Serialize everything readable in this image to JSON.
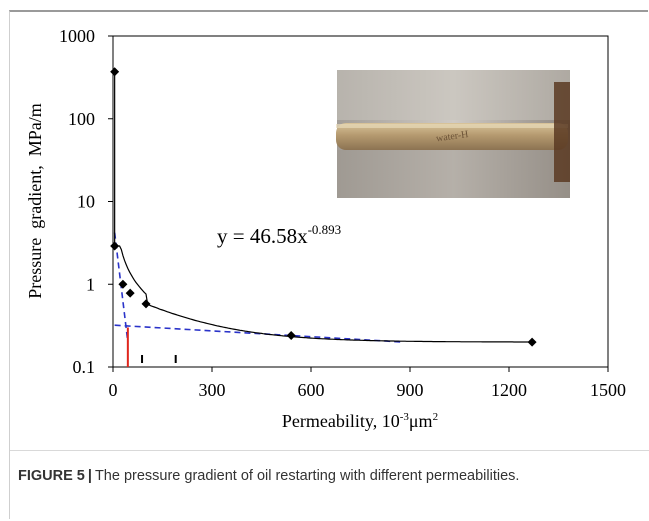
{
  "chart_data": {
    "type": "scatter",
    "xlabel": "Permeability,  10-3μm2",
    "xlabel_parts": {
      "main": "Permeability,  10",
      "exp": "-3",
      "unit": "μm",
      "unit_exp": "2"
    },
    "ylabel": "Pressure  gradient,  MPa/m",
    "xlim": [
      0,
      1500
    ],
    "ylim": [
      0.1,
      1000
    ],
    "y_scale": "log",
    "x_ticks": [
      "0",
      "300",
      "600",
      "900",
      "1200",
      "1500"
    ],
    "y_ticks": [
      "0.1",
      "1",
      "10",
      "100",
      "1000"
    ],
    "grid": false,
    "series": [
      {
        "x": [
          5,
          5,
          30,
          52,
          100,
          540,
          1270
        ],
        "y": [
          370,
          2.9,
          1.0,
          0.78,
          0.58,
          0.24,
          0.2
        ],
        "marker": "diamond",
        "color": "#000000"
      }
    ],
    "fit_curve": {
      "a": 46.58,
      "b": -0.893,
      "color": "#000000"
    },
    "asymptotes": [
      {
        "x": [
          5,
          45
        ],
        "y": [
          4.2,
          0.2
        ],
        "color": "#2a33c9",
        "style": "dashed"
      },
      {
        "x": [
          5,
          880
        ],
        "y": [
          0.32,
          0.2
        ],
        "color": "#2a33c9",
        "style": "dashed"
      }
    ],
    "critical_line": {
      "x": 45,
      "y_top": 0.3,
      "color": "#e0261c"
    },
    "minor_marks_x": [
      88,
      190
    ],
    "equation": {
      "prefix": "y = 46.58x",
      "exponent": "-0.893"
    },
    "inset_photo": {
      "text": "water-H"
    }
  },
  "caption": {
    "label": "FIGURE 5",
    "separator": "|",
    "text": "The pressure gradient of oil restarting with different permeabilities."
  }
}
